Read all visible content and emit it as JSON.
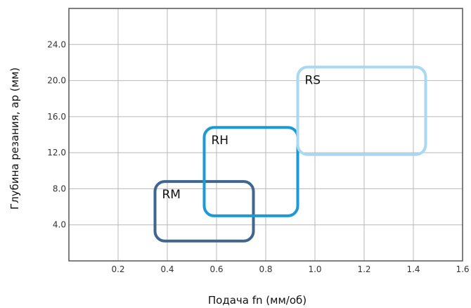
{
  "chart_data": {
    "type": "scatter",
    "title": "",
    "xlabel": "Подача fn (мм/об)",
    "ylabel": "Глубина резания, ap (мм)",
    "xlim": [
      0,
      1.6
    ],
    "ylim": [
      0,
      28
    ],
    "x_ticks": [
      "0.2",
      "0.4",
      "0.6",
      "0.8",
      "1.0",
      "1.2",
      "1.4",
      "1.6"
    ],
    "y_ticks": [
      "4.0",
      "8.0",
      "12.0",
      "16.0",
      "20.0",
      "24.0"
    ],
    "grid": true,
    "series": [
      {
        "name": "RM",
        "x_range": [
          0.35,
          0.75
        ],
        "y_range": [
          2.2,
          8.8
        ],
        "color": "#3f6690"
      },
      {
        "name": "RH",
        "x_range": [
          0.55,
          0.93
        ],
        "y_range": [
          5.0,
          14.8
        ],
        "color": "#1a9ad6"
      },
      {
        "name": "RS",
        "x_range": [
          0.93,
          1.45
        ],
        "y_range": [
          11.8,
          21.5
        ],
        "color": "#a8d8f2"
      }
    ]
  }
}
